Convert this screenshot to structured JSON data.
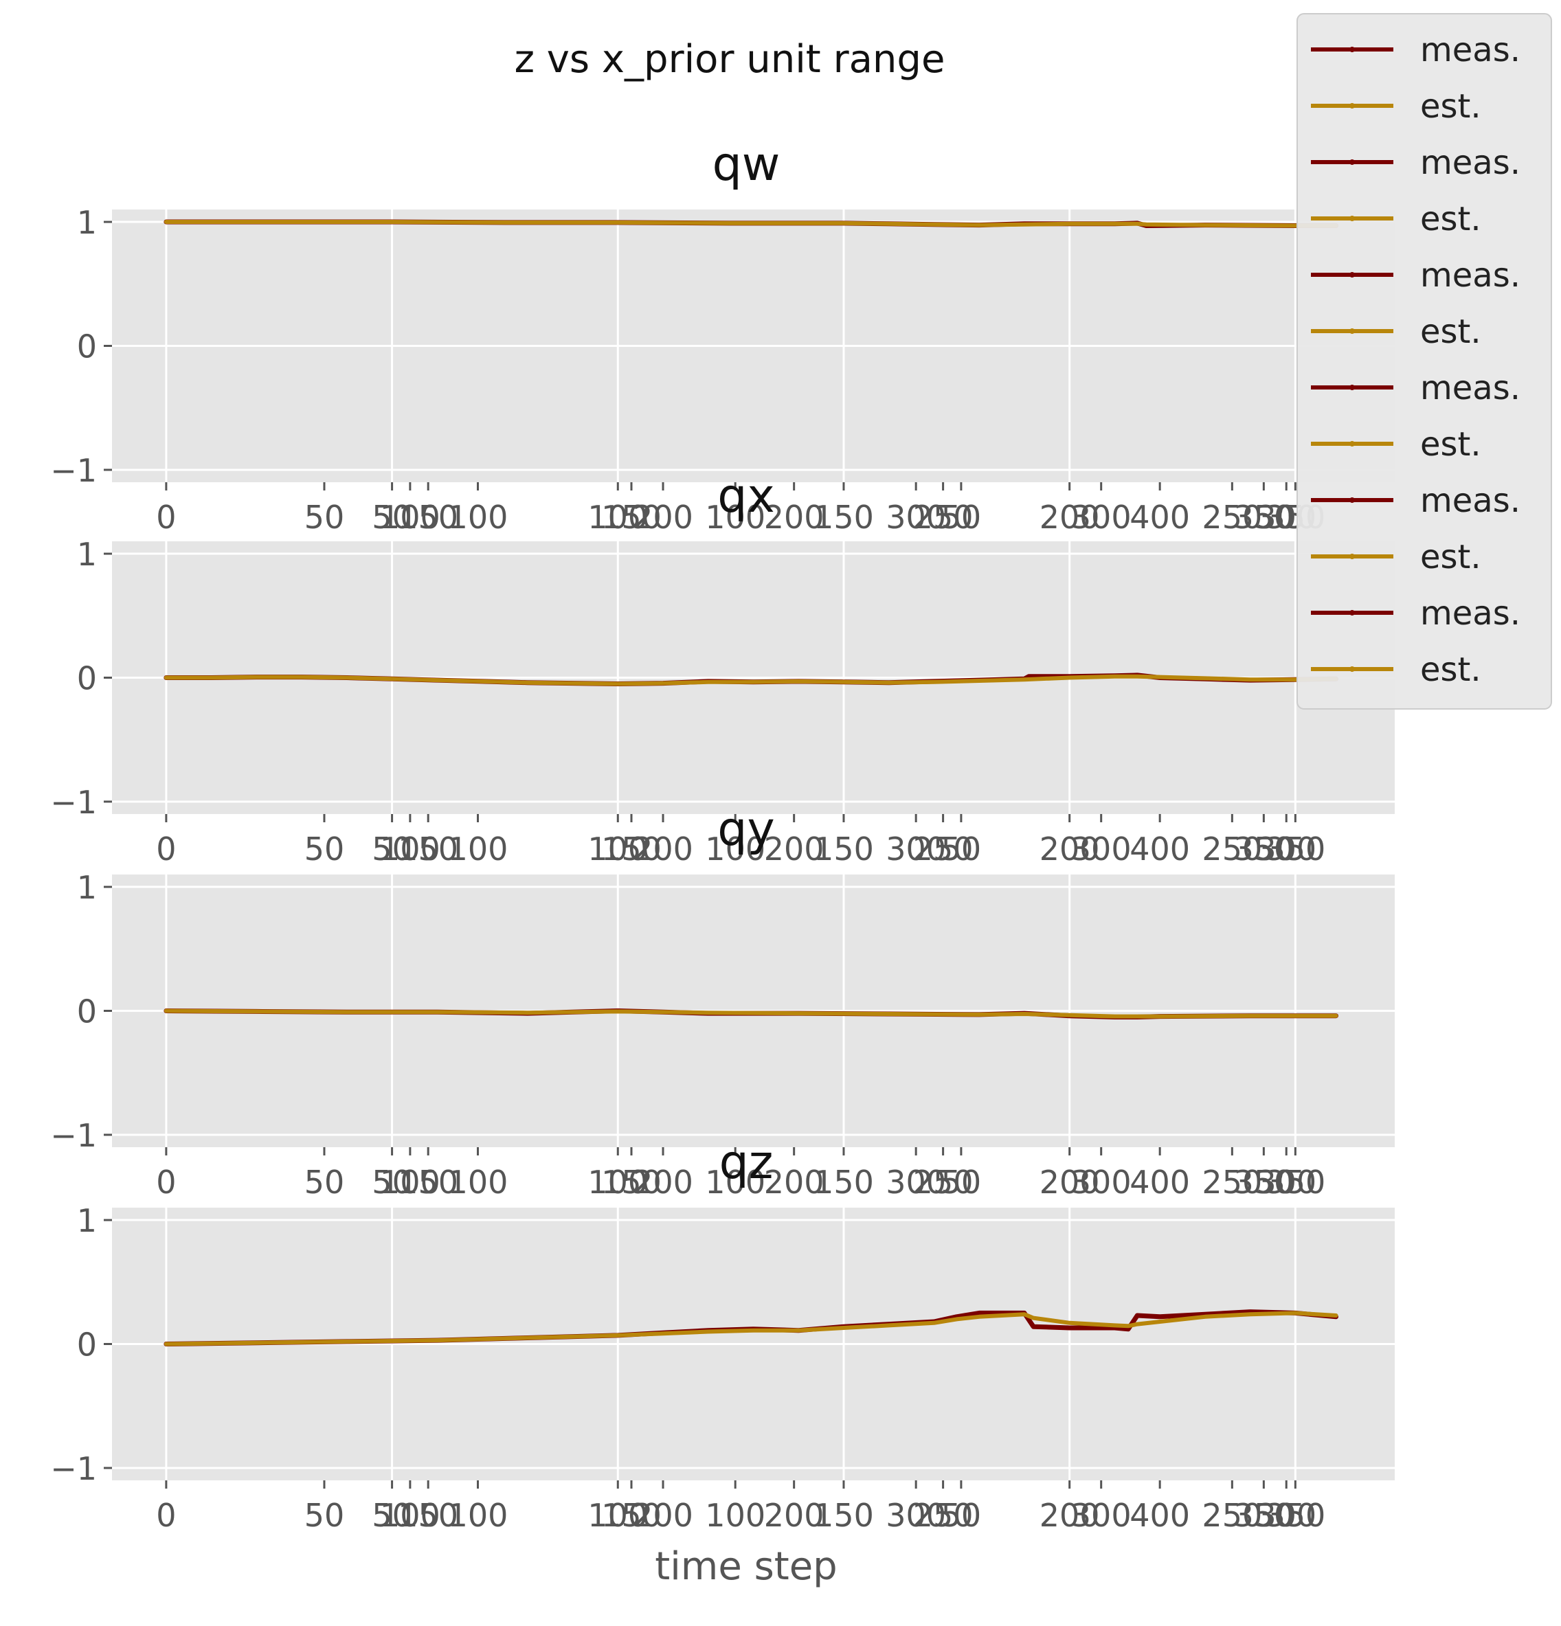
{
  "chart_data": {
    "type": "line",
    "title": "z vs x_prior unit range",
    "xlabel": "time step",
    "ylim": [
      -1.1,
      1.1
    ],
    "xlim": [
      -12,
      272
    ],
    "yticks": [
      -1,
      0,
      1
    ],
    "ytick_labels": [
      "−1",
      "0",
      "1"
    ],
    "grid": true,
    "legend_placement": "top-right",
    "legend_entries": [
      "meas.",
      "est.",
      "meas.",
      "est.",
      "meas.",
      "est.",
      "meas.",
      "est.",
      "meas.",
      "est.",
      "meas.",
      "est."
    ],
    "colors": {
      "meas": "#7a0000",
      "est": "#b8860b",
      "panel_bg": "#e5e5e5",
      "grid": "#ffffff"
    },
    "xticks": [
      {
        "pos": 0,
        "label": "0"
      },
      {
        "pos": 35,
        "label": "50"
      },
      {
        "pos": 50,
        "label": "50"
      },
      {
        "pos": 54,
        "label": "100"
      },
      {
        "pos": 58,
        "label": "150"
      },
      {
        "pos": 69,
        "label": "100"
      },
      {
        "pos": 100,
        "label": "100"
      },
      {
        "pos": 103,
        "label": "150"
      },
      {
        "pos": 110,
        "label": "200"
      },
      {
        "pos": 126,
        "label": "100"
      },
      {
        "pos": 139,
        "label": "200"
      },
      {
        "pos": 150,
        "label": "150"
      },
      {
        "pos": 166,
        "label": "300"
      },
      {
        "pos": 172,
        "label": "250"
      },
      {
        "pos": 176,
        "label": "50"
      },
      {
        "pos": 200,
        "label": "200"
      },
      {
        "pos": 207,
        "label": "300"
      },
      {
        "pos": 220,
        "label": "400"
      },
      {
        "pos": 236,
        "label": "250"
      },
      {
        "pos": 243,
        "label": "350"
      },
      {
        "pos": 248,
        "label": "300"
      },
      {
        "pos": 250,
        "label": "350"
      }
    ],
    "panels": [
      {
        "name": "qw",
        "series": [
          {
            "name": "meas.",
            "x": [
              0,
              25,
              50,
              75,
              100,
              125,
              150,
              160,
              170,
              180,
              190,
              200,
              210,
              215,
              217,
              230,
              250,
              259
            ],
            "y": [
              1.0,
              1.0,
              1.0,
              0.995,
              0.995,
              0.99,
              0.99,
              0.985,
              0.98,
              0.975,
              0.985,
              0.985,
              0.985,
              0.99,
              0.97,
              0.975,
              0.97,
              0.97
            ]
          },
          {
            "name": "est.",
            "x": [
              0,
              25,
              50,
              75,
              100,
              125,
              150,
              160,
              170,
              180,
              190,
              200,
              210,
              215,
              217,
              230,
              250,
              259
            ],
            "y": [
              1.0,
              1.0,
              1.0,
              0.995,
              0.995,
              0.99,
              0.99,
              0.985,
              0.98,
              0.975,
              0.98,
              0.985,
              0.985,
              0.985,
              0.98,
              0.975,
              0.97,
              0.97
            ]
          }
        ]
      },
      {
        "name": "qx",
        "series": [
          {
            "name": "meas.",
            "x": [
              0,
              10,
              20,
              30,
              40,
              50,
              60,
              70,
              80,
              90,
              100,
              110,
              120,
              130,
              140,
              150,
              160,
              170,
              180,
              190,
              191,
              200,
              210,
              215,
              220,
              230,
              240,
              250,
              259
            ],
            "y": [
              0.0,
              0.0,
              0.005,
              0.005,
              0.0,
              -0.01,
              -0.02,
              -0.03,
              -0.04,
              -0.045,
              -0.05,
              -0.045,
              -0.03,
              -0.035,
              -0.03,
              -0.035,
              -0.04,
              -0.03,
              -0.02,
              -0.01,
              0.01,
              0.01,
              0.015,
              0.02,
              0.0,
              -0.01,
              -0.02,
              -0.015,
              -0.01
            ]
          },
          {
            "name": "est.",
            "x": [
              0,
              10,
              20,
              30,
              40,
              50,
              60,
              70,
              80,
              90,
              100,
              110,
              120,
              130,
              140,
              150,
              160,
              170,
              180,
              190,
              200,
              210,
              215,
              220,
              230,
              240,
              250,
              259
            ],
            "y": [
              0.0,
              0.0,
              0.005,
              0.005,
              0.0,
              -0.01,
              -0.02,
              -0.03,
              -0.04,
              -0.045,
              -0.05,
              -0.045,
              -0.035,
              -0.035,
              -0.03,
              -0.035,
              -0.04,
              -0.035,
              -0.025,
              -0.015,
              0.0,
              0.01,
              0.01,
              0.005,
              -0.005,
              -0.015,
              -0.015,
              -0.01
            ]
          }
        ]
      },
      {
        "name": "qy",
        "series": [
          {
            "name": "meas.",
            "x": [
              0,
              20,
              40,
              60,
              80,
              90,
              100,
              110,
              120,
              140,
              160,
              180,
              190,
              200,
              210,
              215,
              220,
              240,
              259
            ],
            "y": [
              0.0,
              -0.005,
              -0.01,
              -0.01,
              -0.02,
              -0.01,
              0.0,
              -0.01,
              -0.02,
              -0.02,
              -0.025,
              -0.03,
              -0.02,
              -0.04,
              -0.05,
              -0.05,
              -0.045,
              -0.04,
              -0.04
            ]
          },
          {
            "name": "est.",
            "x": [
              0,
              20,
              40,
              60,
              80,
              90,
              100,
              110,
              120,
              140,
              160,
              180,
              190,
              200,
              210,
              215,
              220,
              240,
              259
            ],
            "y": [
              0.0,
              -0.005,
              -0.01,
              -0.01,
              -0.015,
              -0.01,
              -0.005,
              -0.01,
              -0.015,
              -0.02,
              -0.025,
              -0.03,
              -0.025,
              -0.035,
              -0.045,
              -0.045,
              -0.045,
              -0.04,
              -0.04
            ]
          }
        ]
      },
      {
        "name": "qz",
        "series": [
          {
            "name": "meas.",
            "x": [
              0,
              20,
              40,
              60,
              80,
              100,
              110,
              120,
              130,
              140,
              150,
              160,
              170,
              175,
              180,
              190,
              192,
              200,
              210,
              213,
              215,
              220,
              230,
              240,
              250,
              259
            ],
            "y": [
              0.0,
              0.01,
              0.02,
              0.03,
              0.05,
              0.07,
              0.09,
              0.11,
              0.12,
              0.11,
              0.14,
              0.16,
              0.18,
              0.22,
              0.25,
              0.25,
              0.14,
              0.13,
              0.13,
              0.12,
              0.23,
              0.22,
              0.24,
              0.26,
              0.25,
              0.22
            ]
          },
          {
            "name": "est.",
            "x": [
              0,
              20,
              40,
              60,
              80,
              100,
              110,
              120,
              130,
              140,
              150,
              160,
              170,
              175,
              180,
              190,
              192,
              200,
              210,
              213,
              215,
              220,
              230,
              240,
              250,
              259
            ],
            "y": [
              0.0,
              0.01,
              0.02,
              0.03,
              0.05,
              0.07,
              0.085,
              0.1,
              0.11,
              0.11,
              0.13,
              0.15,
              0.17,
              0.2,
              0.22,
              0.24,
              0.21,
              0.17,
              0.15,
              0.145,
              0.16,
              0.18,
              0.22,
              0.24,
              0.25,
              0.23
            ]
          }
        ]
      }
    ]
  }
}
